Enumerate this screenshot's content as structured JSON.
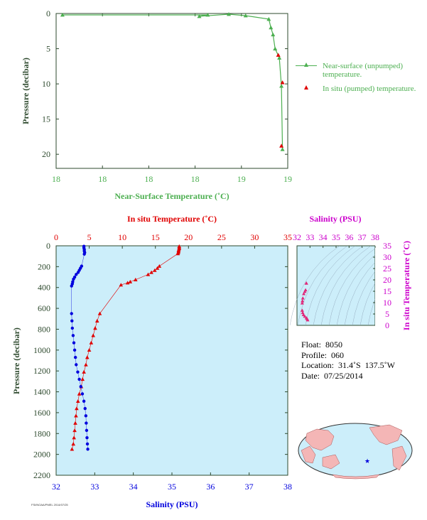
{
  "chart_data": [
    {
      "type": "line",
      "xlabel": "Near-Surface Temperature (˚C)",
      "ylabel": "Pressure (decibar)",
      "xticks": [
        "18",
        "18",
        "18",
        "18",
        "19",
        "19"
      ],
      "yticks": [
        "0",
        "5",
        "10",
        "15",
        "20"
      ],
      "ylim": [
        22,
        0
      ],
      "grid": false,
      "legend_position": "right",
      "series": [
        {
          "name": "Near-surface (unpumped) temperature.",
          "color": "#4caf50",
          "marker": "triangle",
          "points": [
            {
              "x": 18.03,
              "y": 0.2
            },
            {
              "x": 18.72,
              "y": 0.2
            },
            {
              "x": 18.68,
              "y": 0.4
            },
            {
              "x": 18.82,
              "y": 0.1
            },
            {
              "x": 18.9,
              "y": 0.3
            },
            {
              "x": 19.01,
              "y": 0.8
            },
            {
              "x": 19.02,
              "y": 2.0
            },
            {
              "x": 19.03,
              "y": 3.0
            },
            {
              "x": 19.04,
              "y": 5.0
            },
            {
              "x": 19.06,
              "y": 6.3
            },
            {
              "x": 19.07,
              "y": 10.3
            },
            {
              "x": 19.075,
              "y": 19.3
            }
          ]
        },
        {
          "name": "In situ (pumped) temperature.",
          "color": "#e00000",
          "marker": "triangle",
          "points": [
            {
              "x": 19.055,
              "y": 5.9
            },
            {
              "x": 19.075,
              "y": 9.8
            },
            {
              "x": 19.07,
              "y": 18.8
            }
          ]
        }
      ]
    },
    {
      "type": "line",
      "xlabel_bottom": "Salinity (PSU)",
      "xlabel_top": "In situ Temperature (˚C)",
      "ylabel": "Pressure (decibar)",
      "xlim_bottom": [
        32,
        38
      ],
      "xlim_top": [
        0,
        35
      ],
      "ylim": [
        2200,
        0
      ],
      "xticks_bottom": [
        "32",
        "33",
        "34",
        "35",
        "36",
        "37",
        "38"
      ],
      "xticks_top": [
        "0",
        "5",
        "10",
        "15",
        "20",
        "25",
        "30",
        "35"
      ],
      "yticks": [
        "0",
        "200",
        "400",
        "600",
        "800",
        "1000",
        "1200",
        "1400",
        "1600",
        "1800",
        "2000",
        "2200"
      ],
      "grid": false,
      "series": [
        {
          "name": "Temperature",
          "color": "#e00000",
          "marker": "triangle",
          "axis": "top",
          "points": [
            {
              "x": 18.6,
              "y": 5
            },
            {
              "x": 18.6,
              "y": 15
            },
            {
              "x": 18.6,
              "y": 25
            },
            {
              "x": 18.55,
              "y": 35
            },
            {
              "x": 18.5,
              "y": 45
            },
            {
              "x": 18.5,
              "y": 55
            },
            {
              "x": 18.45,
              "y": 65
            },
            {
              "x": 18.4,
              "y": 75
            },
            {
              "x": 15.6,
              "y": 195
            },
            {
              "x": 15.3,
              "y": 215
            },
            {
              "x": 14.9,
              "y": 235
            },
            {
              "x": 14.4,
              "y": 255
            },
            {
              "x": 13.9,
              "y": 275
            },
            {
              "x": 12.0,
              "y": 325
            },
            {
              "x": 11.2,
              "y": 345
            },
            {
              "x": 10.8,
              "y": 355
            },
            {
              "x": 9.8,
              "y": 375
            },
            {
              "x": 6.6,
              "y": 650
            },
            {
              "x": 6.2,
              "y": 720
            },
            {
              "x": 5.9,
              "y": 790
            },
            {
              "x": 5.6,
              "y": 860
            },
            {
              "x": 5.3,
              "y": 930
            },
            {
              "x": 5.0,
              "y": 1000
            },
            {
              "x": 4.7,
              "y": 1070
            },
            {
              "x": 4.5,
              "y": 1140
            },
            {
              "x": 4.2,
              "y": 1210
            },
            {
              "x": 4.0,
              "y": 1280
            },
            {
              "x": 3.8,
              "y": 1350
            },
            {
              "x": 3.5,
              "y": 1420
            },
            {
              "x": 3.3,
              "y": 1490
            },
            {
              "x": 3.1,
              "y": 1560
            },
            {
              "x": 3.0,
              "y": 1630
            },
            {
              "x": 2.9,
              "y": 1700
            },
            {
              "x": 2.8,
              "y": 1770
            },
            {
              "x": 2.7,
              "y": 1840
            },
            {
              "x": 2.6,
              "y": 1900
            },
            {
              "x": 2.4,
              "y": 1950
            }
          ]
        },
        {
          "name": "Salinity",
          "color": "#0000dd",
          "marker": "circle",
          "axis": "bottom",
          "points": [
            {
              "x": 32.72,
              "y": 5
            },
            {
              "x": 32.72,
              "y": 20
            },
            {
              "x": 32.73,
              "y": 35
            },
            {
              "x": 32.73,
              "y": 50
            },
            {
              "x": 32.74,
              "y": 65
            },
            {
              "x": 32.73,
              "y": 80
            },
            {
              "x": 32.66,
              "y": 195
            },
            {
              "x": 32.63,
              "y": 215
            },
            {
              "x": 32.6,
              "y": 235
            },
            {
              "x": 32.57,
              "y": 255
            },
            {
              "x": 32.52,
              "y": 275
            },
            {
              "x": 32.48,
              "y": 300
            },
            {
              "x": 32.45,
              "y": 320
            },
            {
              "x": 32.43,
              "y": 345
            },
            {
              "x": 32.42,
              "y": 365
            },
            {
              "x": 32.4,
              "y": 385
            },
            {
              "x": 32.4,
              "y": 650
            },
            {
              "x": 32.41,
              "y": 720
            },
            {
              "x": 32.42,
              "y": 790
            },
            {
              "x": 32.44,
              "y": 860
            },
            {
              "x": 32.46,
              "y": 930
            },
            {
              "x": 32.48,
              "y": 1000
            },
            {
              "x": 32.5,
              "y": 1070
            },
            {
              "x": 32.52,
              "y": 1140
            },
            {
              "x": 32.56,
              "y": 1210
            },
            {
              "x": 32.6,
              "y": 1280
            },
            {
              "x": 32.64,
              "y": 1350
            },
            {
              "x": 32.68,
              "y": 1420
            },
            {
              "x": 32.72,
              "y": 1490
            },
            {
              "x": 32.75,
              "y": 1560
            },
            {
              "x": 32.77,
              "y": 1630
            },
            {
              "x": 32.78,
              "y": 1700
            },
            {
              "x": 32.79,
              "y": 1770
            },
            {
              "x": 32.8,
              "y": 1840
            },
            {
              "x": 32.81,
              "y": 1900
            },
            {
              "x": 32.82,
              "y": 1950
            }
          ]
        }
      ]
    },
    {
      "type": "scatter",
      "xlabel_top": "Salinity (PSU)",
      "ylabel_right": "In situ Temperature (˚C)",
      "xlim": [
        32,
        38
      ],
      "ylim": [
        0,
        35
      ],
      "xticks_top": [
        "32",
        "33",
        "34",
        "35",
        "36",
        "37",
        "38"
      ],
      "yticks_right": [
        "0",
        "5",
        "10",
        "15",
        "20",
        "25",
        "30",
        "35"
      ],
      "isopycnals": true,
      "points": [
        {
          "x": 32.72,
          "y": 18.6
        },
        {
          "x": 32.72,
          "y": 18.5
        },
        {
          "x": 32.66,
          "y": 15.6
        },
        {
          "x": 32.6,
          "y": 14.9
        },
        {
          "x": 32.52,
          "y": 13.9
        },
        {
          "x": 32.45,
          "y": 12.0
        },
        {
          "x": 32.42,
          "y": 10.8
        },
        {
          "x": 32.4,
          "y": 9.8
        },
        {
          "x": 32.4,
          "y": 6.6
        },
        {
          "x": 32.44,
          "y": 5.6
        },
        {
          "x": 32.5,
          "y": 4.7
        },
        {
          "x": 32.6,
          "y": 4.0
        },
        {
          "x": 32.72,
          "y": 3.3
        },
        {
          "x": 32.78,
          "y": 2.9
        },
        {
          "x": 32.82,
          "y": 2.4
        }
      ]
    }
  ],
  "float_info": {
    "float": "Float:  8050",
    "profile": "Profile:  060",
    "location": "Location:  31.4˚S  137.5˚W",
    "date": "Date:  07/25/2014"
  },
  "credit": "FSI/NOAA/PMEL 2014/07/25",
  "colors": {
    "green": "#4caf50",
    "red": "#e00000",
    "blue": "#0000dd",
    "magenta": "#cc00cc",
    "panel_bg": "#cceefa",
    "axis_dark": "#2e4a2e"
  }
}
